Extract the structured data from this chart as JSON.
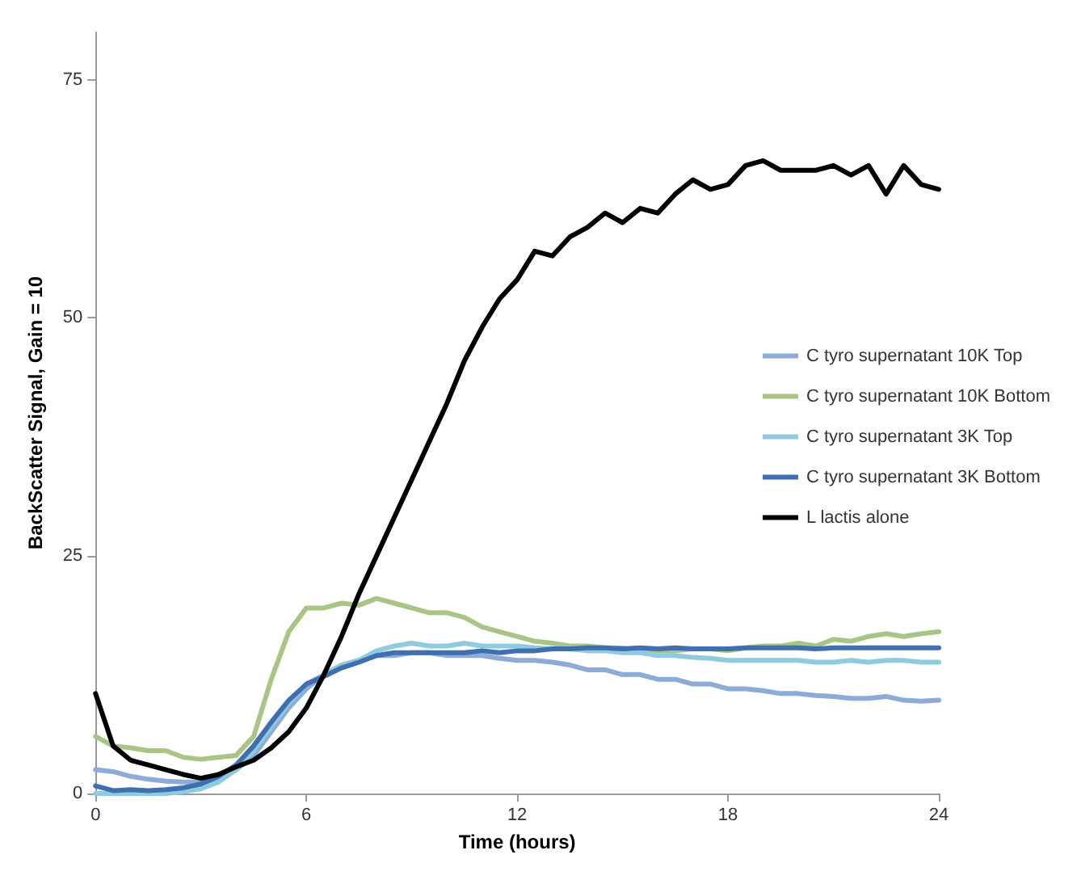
{
  "chart_data": {
    "type": "line",
    "xlabel": "Time (hours)",
    "ylabel": "BackScatter Signal, Gain = 10",
    "x": [
      0,
      0.5,
      1,
      1.5,
      2,
      2.5,
      3,
      3.5,
      4,
      4.5,
      5,
      5.5,
      6,
      6.5,
      7,
      7.5,
      8,
      8.5,
      9,
      9.5,
      10,
      10.5,
      11,
      11.5,
      12,
      12.5,
      13,
      13.5,
      14,
      14.5,
      15,
      15.5,
      16,
      16.5,
      17,
      17.5,
      18,
      18.5,
      19,
      19.5,
      20,
      20.5,
      21,
      21.5,
      22,
      22.5,
      23,
      23.5,
      24
    ],
    "series": [
      {
        "name": "C tyro supernatant 10K Top",
        "color": "#8eaad6",
        "values": [
          2.5,
          2.3,
          1.8,
          1.5,
          1.3,
          1.2,
          1.2,
          1.5,
          2.5,
          4,
          6.5,
          9,
          11,
          12.5,
          13.5,
          14,
          14.5,
          14.5,
          14.8,
          14.8,
          14.5,
          14.5,
          14.5,
          14.2,
          14,
          14,
          13.8,
          13.5,
          13,
          13,
          12.5,
          12.5,
          12,
          12,
          11.5,
          11.5,
          11,
          11,
          10.8,
          10.5,
          10.5,
          10.3,
          10.2,
          10,
          10,
          10.2,
          9.8,
          9.7,
          9.8
        ]
      },
      {
        "name": "C tyro supernatant 10K Bottom",
        "color": "#a9c585",
        "values": [
          6,
          5,
          4.8,
          4.5,
          4.5,
          3.8,
          3.6,
          3.8,
          4,
          6,
          12,
          17,
          19.5,
          19.5,
          20,
          19.8,
          20.5,
          20,
          19.5,
          19,
          19,
          18.5,
          17.5,
          17,
          16.5,
          16,
          15.8,
          15.5,
          15.5,
          15.3,
          15.3,
          15,
          15,
          15,
          15.2,
          15.2,
          15,
          15.3,
          15.5,
          15.5,
          15.8,
          15.5,
          16.2,
          16,
          16.5,
          16.8,
          16.5,
          16.8,
          17
        ]
      },
      {
        "name": "C tyro supernatant 3K Top",
        "color": "#8ecbde",
        "values": [
          0,
          0,
          0,
          0,
          0,
          0.2,
          0.5,
          1.2,
          2.5,
          4.5,
          7,
          9.5,
          11.5,
          12.5,
          13.5,
          14,
          15,
          15.5,
          15.8,
          15.5,
          15.5,
          15.8,
          15.5,
          15.5,
          15.5,
          15.3,
          15.2,
          15.2,
          15,
          15,
          14.8,
          14.8,
          14.5,
          14.5,
          14.3,
          14.2,
          14,
          14,
          14,
          14,
          14,
          13.8,
          13.8,
          14,
          13.8,
          14,
          14,
          13.8,
          13.8
        ]
      },
      {
        "name": "C tyro supernatant 3K Bottom",
        "color": "#3f6fb0",
        "values": [
          0.8,
          0.3,
          0.4,
          0.3,
          0.4,
          0.6,
          1,
          1.8,
          3,
          5,
          7.5,
          9.8,
          11.5,
          12.3,
          13.2,
          13.8,
          14.5,
          14.8,
          14.8,
          14.8,
          14.8,
          14.8,
          15,
          14.8,
          15,
          15,
          15.2,
          15.2,
          15.3,
          15.3,
          15.2,
          15.3,
          15.2,
          15.3,
          15.2,
          15.2,
          15.2,
          15.3,
          15.3,
          15.3,
          15.3,
          15.2,
          15.3,
          15.3,
          15.3,
          15.3,
          15.3,
          15.3,
          15.3
        ]
      },
      {
        "name": "L lactis alone",
        "color": "#000000",
        "values": [
          10.5,
          5,
          3.5,
          3,
          2.5,
          2,
          1.6,
          2,
          2.8,
          3.5,
          4.8,
          6.5,
          9,
          12.5,
          16.5,
          21,
          25,
          29,
          33,
          37,
          41,
          45.5,
          49,
          52,
          54,
          57,
          56.5,
          58.5,
          59.5,
          61,
          60,
          61.5,
          61,
          63,
          64.5,
          63.5,
          64,
          66,
          66.5,
          65.5,
          65.5,
          65.5,
          66,
          65,
          66,
          63,
          66,
          64,
          63.5
        ]
      }
    ],
    "xlim": [
      0,
      24
    ],
    "xticks": [
      0,
      6,
      12,
      18,
      24
    ],
    "ylim": [
      0,
      80
    ],
    "yticks": [
      0,
      25,
      50,
      75
    ],
    "grid": false,
    "legend": "right",
    "marker": "none",
    "line_style": "solid"
  }
}
